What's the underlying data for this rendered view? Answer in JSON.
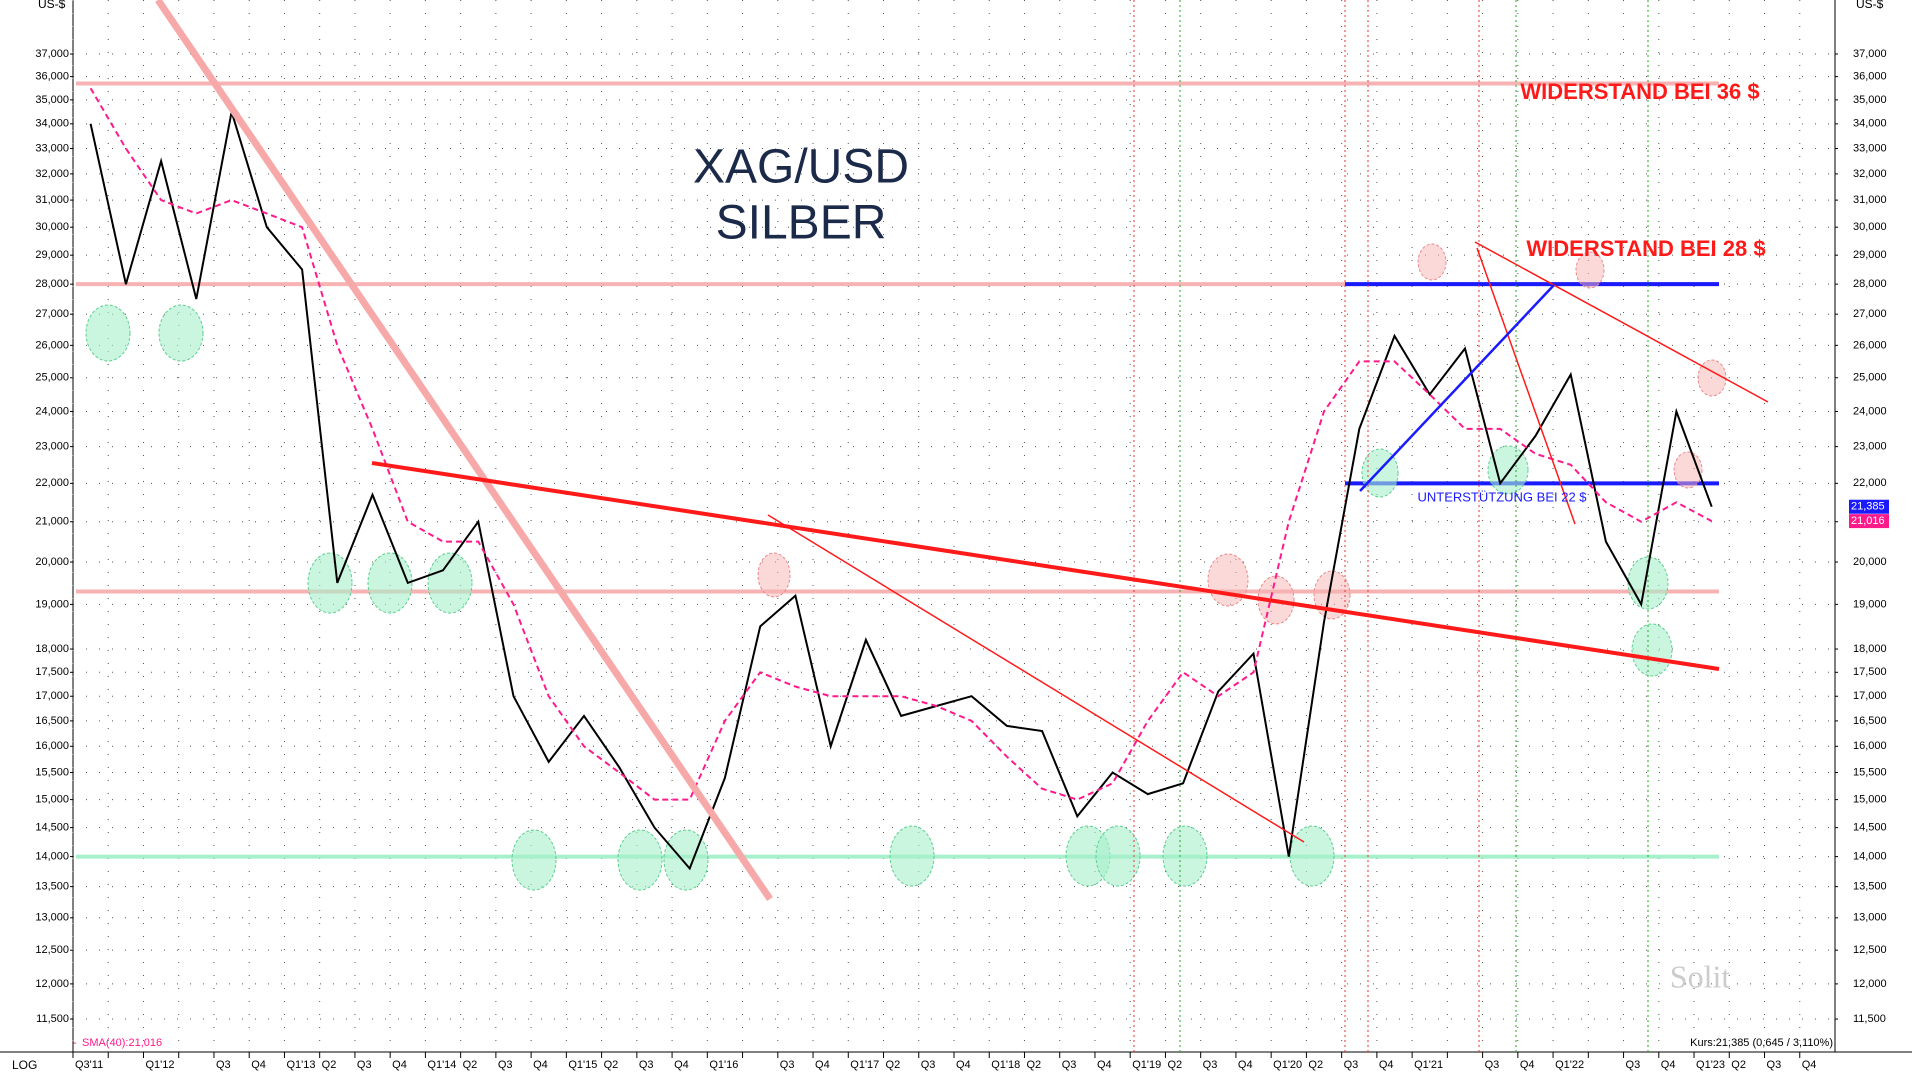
{
  "chart_data": {
    "type": "line",
    "title": "XAG/USD",
    "subtitle": "SILBER",
    "y_axis_label": "US-$",
    "scale_label": "LOG",
    "log_scale": true,
    "grid": true,
    "categories": [
      "Q3'11",
      null,
      "Q1'12",
      null,
      "Q3",
      "Q4",
      "Q1'13",
      "Q2",
      "Q3",
      "Q4",
      "Q1'14",
      "Q2",
      "Q3",
      "Q4",
      "Q1'15",
      "Q2",
      "Q3",
      "Q4",
      "Q1'16",
      null,
      "Q3",
      "Q4",
      "Q1'17",
      "Q2",
      "Q3",
      "Q4",
      "Q1'18",
      "Q2",
      "Q3",
      "Q4",
      "Q1'19",
      "Q2",
      "Q3",
      "Q4",
      "Q1'20",
      "Q2",
      "Q3",
      "Q4",
      "Q1'21",
      null,
      "Q3",
      "Q4",
      "Q1'22",
      null,
      "Q3",
      "Q4",
      "Q1'23",
      "Q2",
      "Q3",
      "Q4"
    ],
    "series": [
      {
        "color": "#000000",
        "values": [
          34,
          28,
          32.5,
          27.5,
          34.5,
          30,
          28.5,
          19.5,
          21.7,
          19.5,
          19.8,
          21,
          17,
          15.7,
          16.6,
          15.6,
          14.5,
          13.8,
          15.4,
          18.5,
          19.2,
          16,
          18.2,
          16.6,
          16.8,
          17,
          16.4,
          16.3,
          14.7,
          15.5,
          15.1,
          15.3,
          17.1,
          17.9,
          14,
          18.6,
          23.5,
          26.3,
          24.5,
          25.9,
          22,
          23.3,
          25.1,
          20.5,
          19,
          24,
          21.385,
          null,
          null,
          null
        ]
      },
      {
        "name": "SMA(40):21,016",
        "color": "#ff1a8c",
        "values": [
          35.5,
          33,
          31,
          30.5,
          31,
          30.5,
          30,
          26,
          23.5,
          21,
          20.5,
          20.5,
          19,
          17,
          16,
          15.5,
          15,
          15,
          16.5,
          17.5,
          17.2,
          17,
          17,
          17,
          16.8,
          16.5,
          15.8,
          15.2,
          15,
          15.3,
          16.5,
          17.5,
          17,
          17.5,
          21,
          24,
          25.5,
          25.5,
          24.5,
          23.5,
          23.5,
          22.8,
          22.5,
          21.5,
          21,
          21.5,
          21.016,
          null,
          null,
          null
        ]
      }
    ],
    "ylim": [
      11.05,
      39.5
    ],
    "yticks": [
      {
        "value": 11.5,
        "label": "11,500"
      },
      {
        "value": 12,
        "label": "12,000"
      },
      {
        "value": 12.5,
        "label": "12,500"
      },
      {
        "value": 13,
        "label": "13,000"
      },
      {
        "value": 13.5,
        "label": "13,500"
      },
      {
        "value": 14,
        "label": "14,000"
      },
      {
        "value": 14.5,
        "label": "14,500"
      },
      {
        "value": 15,
        "label": "15,000"
      },
      {
        "value": 15.5,
        "label": "15,500"
      },
      {
        "value": 16,
        "label": "16,000"
      },
      {
        "value": 16.5,
        "label": "16,500"
      },
      {
        "value": 17,
        "label": "17,000"
      },
      {
        "value": 17.5,
        "label": "17,500"
      },
      {
        "value": 18,
        "label": "18,000"
      },
      {
        "value": 19,
        "label": "19,000"
      },
      {
        "value": 20,
        "label": "20,000"
      },
      {
        "value": 21,
        "label": "21,000"
      },
      {
        "value": 22,
        "label": "22,000"
      },
      {
        "value": 23,
        "label": "23,000"
      },
      {
        "value": 24,
        "label": "24,000"
      },
      {
        "value": 25,
        "label": "25,000"
      },
      {
        "value": 26,
        "label": "26,000"
      },
      {
        "value": 27,
        "label": "27,000"
      },
      {
        "value": 28,
        "label": "28,000"
      },
      {
        "value": 29,
        "label": "29,000"
      },
      {
        "value": 30,
        "label": "30,000"
      },
      {
        "value": 31,
        "label": "31,000"
      },
      {
        "value": 32,
        "label": "32,000"
      },
      {
        "value": 33,
        "label": "33,000"
      },
      {
        "value": 34,
        "label": "34,000"
      },
      {
        "value": 35,
        "label": "35,000"
      },
      {
        "value": 36,
        "label": "36,000"
      },
      {
        "value": 37,
        "label": "37,000"
      }
    ],
    "levels": [
      {
        "value": 35.7,
        "color": "#f7b3b3"
      },
      {
        "value": 28,
        "color": "#f7b3b3"
      },
      {
        "value": 19.3,
        "color": "#f7b3b3"
      },
      {
        "value": 14,
        "color": "#a6f0cc"
      },
      {
        "value": 28,
        "color": "#1a1aff"
      },
      {
        "value": 22,
        "color": "#1a1aff"
      }
    ],
    "last_price": {
      "value": 21.385,
      "label": "21,385",
      "color": "#1a1aff"
    },
    "last_sma": {
      "value": 21.016,
      "label": "21,016",
      "color": "#ff1a8c"
    },
    "annotations": [
      "WIDERSTAND BEI 36 $",
      "WIDERSTAND BEI 28 $",
      "UNTERSTÜTZUNG BEI 22 $"
    ],
    "quote": "Kurs:21,385 (0,645 / 3,110%)",
    "watermark": "Solit"
  }
}
